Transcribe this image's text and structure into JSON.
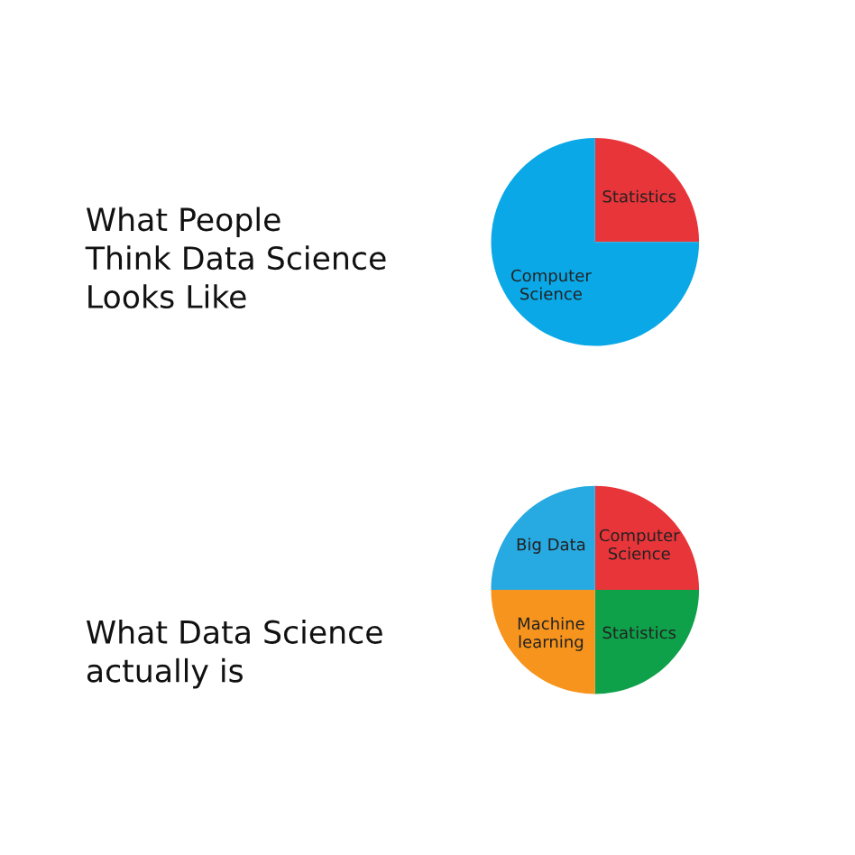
{
  "chart_data": [
    {
      "type": "pie",
      "title": "What People\nThink Data Science\nLooks Like",
      "categories": [
        "Statistics",
        "Computer\nScience"
      ],
      "values": [
        25,
        75
      ],
      "colors": [
        "#e8353a",
        "#0aa8e6"
      ]
    },
    {
      "type": "pie",
      "title": "What Data Science\nactually is",
      "categories": [
        "Computer\nScience",
        "Statistics",
        "Machine\nlearning",
        "Big Data"
      ],
      "values": [
        25,
        25,
        25,
        25
      ],
      "colors": [
        "#e8353a",
        "#0fa14a",
        "#f7941d",
        "#27a9e1"
      ]
    }
  ]
}
